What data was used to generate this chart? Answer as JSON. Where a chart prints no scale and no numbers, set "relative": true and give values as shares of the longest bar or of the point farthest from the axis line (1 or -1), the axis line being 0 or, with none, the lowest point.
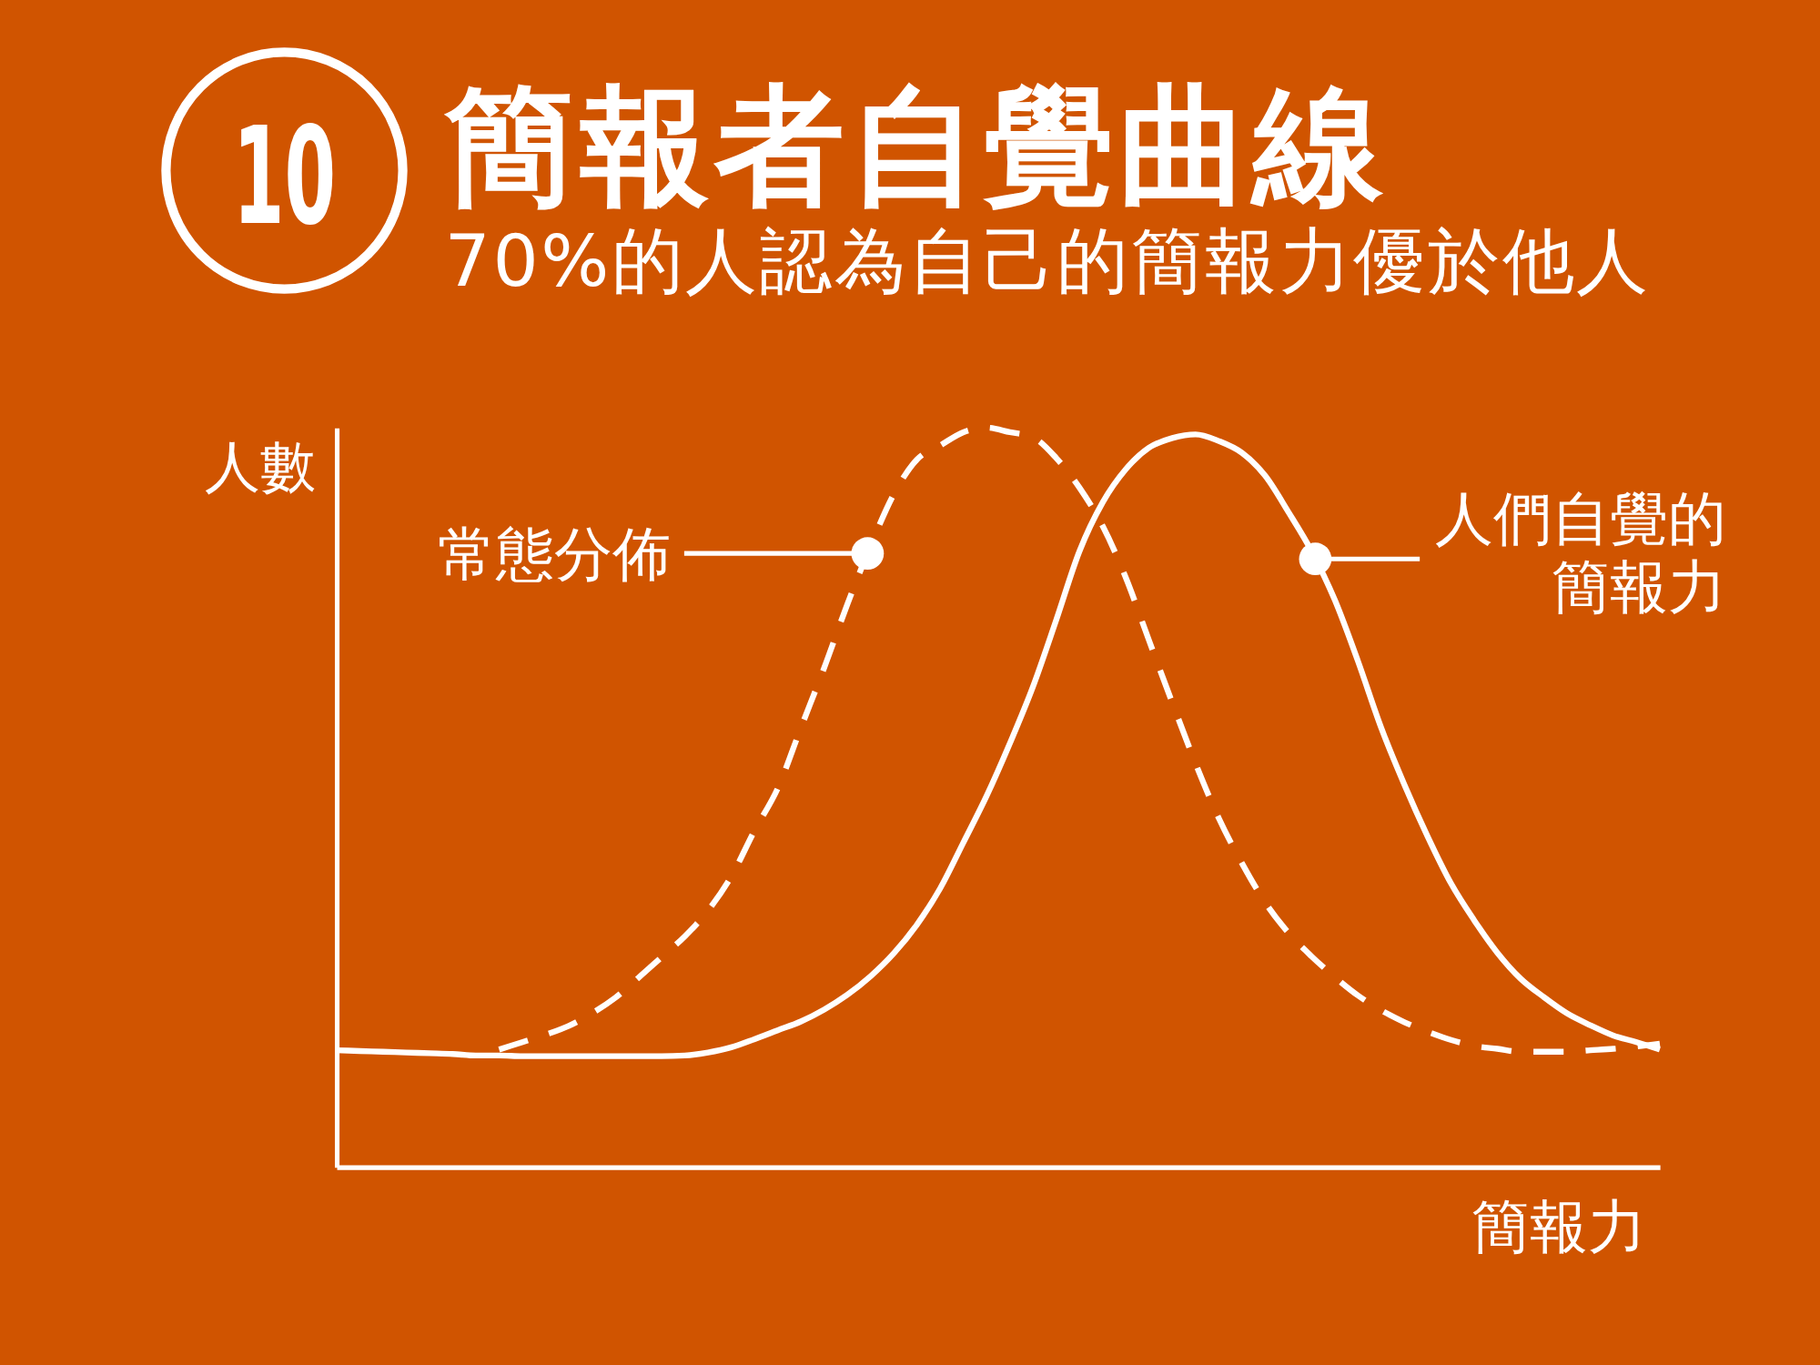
{
  "chart_data": {
    "type": "line",
    "title": "簡報者自覺曲線",
    "subtitle": "70%的人認為自己的簡報力優於他人",
    "xlabel": "簡報力",
    "ylabel": "人數",
    "annotations": [
      "10"
    ],
    "relative": true,
    "categories": [
      null,
      null,
      null,
      null,
      null,
      null,
      null,
      null,
      null,
      null,
      null,
      null,
      null,
      null,
      null,
      null,
      null,
      null,
      null,
      null,
      null,
      null,
      null,
      null,
      null,
      null,
      null,
      null,
      null,
      null,
      null,
      null,
      null,
      null,
      null,
      null,
      null,
      null,
      null,
      null,
      null,
      null,
      null,
      null,
      null,
      null,
      null,
      null,
      null,
      null,
      null,
      null,
      null,
      null,
      null,
      null,
      null,
      null
    ],
    "series": [
      {
        "name": "常態分佈",
        "color": "#ffffff",
        "line_style": "dashed",
        "values": [
          null,
          null,
          null,
          null,
          null,
          null,
          null,
          0.159,
          0.169,
          0.179,
          0.191,
          0.208,
          0.229,
          0.256,
          0.284,
          0.312,
          0.347,
          0.393,
          0.455,
          0.512,
          0.594,
          0.675,
          0.761,
          0.84,
          0.91,
          0.957,
          0.976,
          0.994,
          1,
          0.994,
          0.987,
          0.959,
          0.919,
          0.867,
          0.797,
          0.712,
          0.628,
          0.546,
          0.472,
          0.411,
          0.358,
          0.317,
          0.285,
          0.257,
          0.232,
          0.212,
          0.196,
          0.183,
          0.172,
          0.164,
          0.16,
          0.156,
          0.156,
          0.156,
          0.158,
          0.16,
          0.163,
          0.167
        ]
      },
      {
        "name": "人們自覺的簡報力",
        "color": "#ffffff",
        "line_style": "solid",
        "values": [
          0.158,
          0.157,
          0.156,
          0.155,
          0.154,
          0.153,
          0.151,
          0.151,
          0.15,
          0.15,
          0.15,
          0.15,
          0.15,
          0.15,
          0.15,
          0.151,
          0.155,
          0.162,
          0.173,
          0.185,
          0.197,
          0.213,
          0.233,
          0.258,
          0.289,
          0.328,
          0.377,
          0.439,
          0.502,
          0.573,
          0.65,
          0.74,
          0.833,
          0.899,
          0.944,
          0.973,
          0.986,
          0.991,
          0.982,
          0.966,
          0.935,
          0.886,
          0.833,
          0.767,
          0.684,
          0.594,
          0.517,
          0.447,
          0.384,
          0.334,
          0.29,
          0.255,
          0.23,
          0.208,
          0.192,
          0.178,
          0.169,
          0.159
        ]
      }
    ]
  }
}
